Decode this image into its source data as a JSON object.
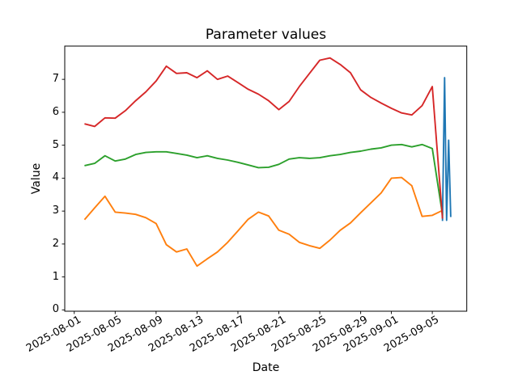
{
  "chart_data": {
    "type": "line",
    "title": "Parameter values",
    "xlabel": "Date",
    "ylabel": "Value",
    "background_color": "#ffffff",
    "grid": false,
    "legend": "none",
    "ylim": [
      -0.04,
      8.01
    ],
    "xlim_days_from_2025_08_01": [
      -0.93,
      38.37
    ],
    "y_ticks": [
      0,
      1,
      2,
      3,
      4,
      5,
      6,
      7
    ],
    "x_ticks": [
      {
        "label": "2025-08-01",
        "day": 0
      },
      {
        "label": "2025-08-05",
        "day": 4
      },
      {
        "label": "2025-08-09",
        "day": 8
      },
      {
        "label": "2025-08-13",
        "day": 12
      },
      {
        "label": "2025-08-17",
        "day": 16
      },
      {
        "label": "2025-08-21",
        "day": 20
      },
      {
        "label": "2025-08-25",
        "day": 24
      },
      {
        "label": "2025-08-29",
        "day": 28
      },
      {
        "label": "2025-09-01",
        "day": 31
      },
      {
        "label": "2025-09-05",
        "day": 35
      }
    ],
    "daily_dates": [
      "2025-08-02",
      "2025-08-03",
      "2025-08-04",
      "2025-08-05",
      "2025-08-06",
      "2025-08-07",
      "2025-08-08",
      "2025-08-09",
      "2025-08-10",
      "2025-08-11",
      "2025-08-12",
      "2025-08-13",
      "2025-08-14",
      "2025-08-15",
      "2025-08-16",
      "2025-08-17",
      "2025-08-18",
      "2025-08-19",
      "2025-08-20",
      "2025-08-21",
      "2025-08-22",
      "2025-08-23",
      "2025-08-24",
      "2025-08-25",
      "2025-08-26",
      "2025-08-27",
      "2025-08-28",
      "2025-08-29",
      "2025-08-30",
      "2025-08-31",
      "2025-09-01",
      "2025-09-02",
      "2025-09-03",
      "2025-09-04",
      "2025-09-05",
      "2025-09-06"
    ],
    "series": [
      {
        "name": "blue",
        "color": "#1f77b4",
        "x_days": [
          36.0,
          36.2,
          36.4,
          36.6,
          36.8
        ],
        "values": [
          2.7,
          7.05,
          2.72,
          5.15,
          2.82
        ]
      },
      {
        "name": "orange",
        "color": "#ff7f0e",
        "x_days": [
          1,
          2,
          3,
          4,
          5,
          6,
          7,
          8,
          9,
          10,
          11,
          12,
          13,
          14,
          15,
          16,
          17,
          18,
          19,
          20,
          21,
          22,
          23,
          24,
          25,
          26,
          27,
          28,
          29,
          30,
          31,
          32,
          33,
          34,
          35,
          36
        ],
        "values": [
          2.74,
          3.1,
          3.45,
          2.97,
          2.94,
          2.9,
          2.8,
          2.62,
          1.98,
          1.76,
          1.85,
          1.33,
          1.55,
          1.76,
          2.05,
          2.4,
          2.75,
          2.97,
          2.85,
          2.42,
          2.3,
          2.05,
          1.95,
          1.87,
          2.12,
          2.42,
          2.64,
          2.95,
          3.25,
          3.55,
          4.0,
          4.02,
          3.77,
          2.84,
          2.87,
          3.02
        ]
      },
      {
        "name": "green",
        "color": "#2ca02c",
        "x_days": [
          1,
          2,
          3,
          4,
          5,
          6,
          7,
          8,
          9,
          10,
          11,
          12,
          13,
          14,
          15,
          16,
          17,
          18,
          19,
          20,
          21,
          22,
          23,
          24,
          25,
          26,
          27,
          28,
          29,
          30,
          31,
          32,
          33,
          34,
          35,
          36
        ],
        "values": [
          4.38,
          4.45,
          4.68,
          4.52,
          4.58,
          4.72,
          4.78,
          4.8,
          4.8,
          4.75,
          4.7,
          4.62,
          4.68,
          4.6,
          4.55,
          4.48,
          4.4,
          4.32,
          4.33,
          4.42,
          4.58,
          4.62,
          4.6,
          4.62,
          4.68,
          4.72,
          4.78,
          4.82,
          4.88,
          4.92,
          5.0,
          5.02,
          4.95,
          5.02,
          4.9,
          2.89
        ]
      },
      {
        "name": "red",
        "color": "#d62728",
        "x_days": [
          1,
          2,
          3,
          4,
          5,
          6,
          7,
          8,
          9,
          10,
          11,
          12,
          13,
          14,
          15,
          16,
          17,
          18,
          19,
          20,
          21,
          22,
          23,
          24,
          25,
          26,
          27,
          28,
          29,
          30,
          31,
          32,
          33,
          34,
          35,
          36
        ],
        "values": [
          5.65,
          5.57,
          5.83,
          5.82,
          6.05,
          6.35,
          6.62,
          6.95,
          7.4,
          7.18,
          7.2,
          7.05,
          7.26,
          7.0,
          7.1,
          6.9,
          6.7,
          6.55,
          6.35,
          6.08,
          6.33,
          6.78,
          7.18,
          7.58,
          7.65,
          7.45,
          7.2,
          6.68,
          6.45,
          6.28,
          6.12,
          5.98,
          5.92,
          6.2,
          6.78,
          2.77
        ]
      }
    ]
  }
}
